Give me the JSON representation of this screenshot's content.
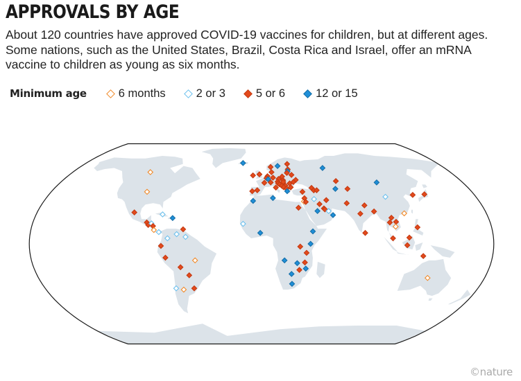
{
  "title": "APPROVALS BY AGE",
  "subtitle": "About 120 countries have approved COVID-19 vaccines for children, but at different ages. Some nations, such as the United States, Brazil, Costa Rica and Israel, offer an mRNA vaccine to children as young as six months.",
  "legend": {
    "title": "Minimum age",
    "items": [
      {
        "key": "m6",
        "label": "6 months",
        "fill": "#ffffff",
        "stroke": "#f08a2a"
      },
      {
        "key": "y2",
        "label": "2 or 3",
        "fill": "#ffffff",
        "stroke": "#6cc0ee"
      },
      {
        "key": "y5",
        "label": "5 or 6",
        "fill": "#e34a1c",
        "stroke": "#c43a12"
      },
      {
        "key": "y12",
        "label": "12 or 15",
        "fill": "#1f8fd8",
        "stroke": "#166fa8"
      }
    ]
  },
  "colors": {
    "land": "#dce3e9",
    "ocean": "#ffffff",
    "border": "#1a1a1a"
  },
  "credit": "©nature",
  "markers": [
    {
      "country": "United States",
      "lon": -98,
      "lat": 39,
      "age": "m6"
    },
    {
      "country": "Canada",
      "lon": -106,
      "lat": 56,
      "age": "m6"
    },
    {
      "country": "Mexico",
      "lon": -102,
      "lat": 23,
      "age": "y5"
    },
    {
      "country": "Cuba",
      "lon": -79,
      "lat": 21.5,
      "age": "y2"
    },
    {
      "country": "Dominican Republic",
      "lon": -70.5,
      "lat": 18.8,
      "age": "y12"
    },
    {
      "country": "Guatemala",
      "lon": -90.3,
      "lat": 15.5,
      "age": "y5"
    },
    {
      "country": "El Salvador",
      "lon": -88.9,
      "lat": 13.7,
      "age": "y5"
    },
    {
      "country": "Honduras",
      "lon": -86.5,
      "lat": 14.8,
      "age": "y2"
    },
    {
      "country": "Nicaragua",
      "lon": -85,
      "lat": 12.9,
      "age": "y5"
    },
    {
      "country": "Costa Rica",
      "lon": -84,
      "lat": 10,
      "age": "m6"
    },
    {
      "country": "Panama",
      "lon": -80,
      "lat": 8.5,
      "age": "y2"
    },
    {
      "country": "Venezuela",
      "lon": -66,
      "lat": 7,
      "age": "y2"
    },
    {
      "country": "Trinidad and Tobago",
      "lon": -61.2,
      "lat": 10.5,
      "age": "y5"
    },
    {
      "country": "Guyana",
      "lon": -59,
      "lat": 5,
      "age": "y2"
    },
    {
      "country": "Colombia",
      "lon": -73,
      "lat": 4,
      "age": "y2"
    },
    {
      "country": "Ecuador",
      "lon": -78,
      "lat": -1.5,
      "age": "y5"
    },
    {
      "country": "Peru",
      "lon": -75,
      "lat": -10,
      "age": "y5"
    },
    {
      "country": "Brazil",
      "lon": -52,
      "lat": -12,
      "age": "m6"
    },
    {
      "country": "Bolivia",
      "lon": -64,
      "lat": -17,
      "age": "y5"
    },
    {
      "country": "Paraguay",
      "lon": -58,
      "lat": -23,
      "age": "y5"
    },
    {
      "country": "Chile",
      "lon": -71,
      "lat": -33,
      "age": "y2"
    },
    {
      "country": "Argentina",
      "lon": -65,
      "lat": -34,
      "age": "m6"
    },
    {
      "country": "Uruguay",
      "lon": -56,
      "lat": -33,
      "age": "y5"
    },
    {
      "country": "Iceland",
      "lon": -19,
      "lat": 65,
      "age": "y12"
    },
    {
      "country": "Norway",
      "lon": 9,
      "lat": 61,
      "age": "y5"
    },
    {
      "country": "Sweden",
      "lon": 16,
      "lat": 62,
      "age": "y12"
    },
    {
      "country": "Finland",
      "lon": 26,
      "lat": 64,
      "age": "y5"
    },
    {
      "country": "Estonia",
      "lon": 25.5,
      "lat": 58.7,
      "age": "y5"
    },
    {
      "country": "Latvia",
      "lon": 25,
      "lat": 56.9,
      "age": "y12"
    },
    {
      "country": "Lithuania",
      "lon": 24,
      "lat": 55.3,
      "age": "y5"
    },
    {
      "country": "Denmark",
      "lon": 9.5,
      "lat": 56,
      "age": "y5"
    },
    {
      "country": "Ireland",
      "lon": -8,
      "lat": 53,
      "age": "y5"
    },
    {
      "country": "United Kingdom",
      "lon": -2,
      "lat": 54,
      "age": "y5"
    },
    {
      "country": "Netherlands",
      "lon": 5.5,
      "lat": 52.3,
      "age": "y5"
    },
    {
      "country": "Belgium",
      "lon": 4.5,
      "lat": 50.6,
      "age": "y5"
    },
    {
      "country": "Luxembourg",
      "lon": 6,
      "lat": 49.6,
      "age": "y12"
    },
    {
      "country": "Germany",
      "lon": 10.5,
      "lat": 51,
      "age": "y5"
    },
    {
      "country": "Poland",
      "lon": 19,
      "lat": 52,
      "age": "y5"
    },
    {
      "country": "Belarus",
      "lon": 28,
      "lat": 53.5,
      "age": "y5"
    },
    {
      "country": "Ukraine",
      "lon": 31,
      "lat": 49,
      "age": "y5"
    },
    {
      "country": "Czech Republic",
      "lon": 15.5,
      "lat": 49.8,
      "age": "y5"
    },
    {
      "country": "Slovakia",
      "lon": 19.5,
      "lat": 48.7,
      "age": "y5"
    },
    {
      "country": "Austria",
      "lon": 14.5,
      "lat": 47.5,
      "age": "y5"
    },
    {
      "country": "Switzerland",
      "lon": 8.2,
      "lat": 46.8,
      "age": "y5"
    },
    {
      "country": "France",
      "lon": 2.5,
      "lat": 46.5,
      "age": "y5"
    },
    {
      "country": "Hungary",
      "lon": 19.5,
      "lat": 47.2,
      "age": "y5"
    },
    {
      "country": "Slovenia",
      "lon": 14.8,
      "lat": 46.1,
      "age": "y5"
    },
    {
      "country": "Croatia",
      "lon": 16,
      "lat": 45.2,
      "age": "y5"
    },
    {
      "country": "Romania",
      "lon": 25,
      "lat": 46,
      "age": "y5"
    },
    {
      "country": "Moldova",
      "lon": 28.5,
      "lat": 47.2,
      "age": "y5"
    },
    {
      "country": "Serbia",
      "lon": 21,
      "lat": 44,
      "age": "y5"
    },
    {
      "country": "Bosnia and Herzegovina",
      "lon": 17.8,
      "lat": 44,
      "age": "y5"
    },
    {
      "country": "Montenegro",
      "lon": 19.3,
      "lat": 42.8,
      "age": "y5"
    },
    {
      "country": "Bulgaria",
      "lon": 25.5,
      "lat": 42.7,
      "age": "y5"
    },
    {
      "country": "North Macedonia",
      "lon": 21.7,
      "lat": 41.6,
      "age": "y5"
    },
    {
      "country": "Italy",
      "lon": 12.5,
      "lat": 42.5,
      "age": "y5"
    },
    {
      "country": "Spain",
      "lon": -3.7,
      "lat": 40.3,
      "age": "y5"
    },
    {
      "country": "Portugal",
      "lon": -8,
      "lat": 39.5,
      "age": "y5"
    },
    {
      "country": "Greece",
      "lon": 22,
      "lat": 39.5,
      "age": "y12"
    },
    {
      "country": "Turkey",
      "lon": 35,
      "lat": 39,
      "age": "y5"
    },
    {
      "country": "Russia",
      "lon": 60,
      "lat": 60,
      "age": "y12"
    },
    {
      "country": "Georgia",
      "lon": 43.5,
      "lat": 42.2,
      "age": "y5"
    },
    {
      "country": "Armenia",
      "lon": 45,
      "lat": 40.2,
      "age": "y5"
    },
    {
      "country": "Azerbaijan",
      "lon": 47.5,
      "lat": 40.3,
      "age": "y5"
    },
    {
      "country": "Kazakhstan",
      "lon": 67,
      "lat": 48,
      "age": "y5"
    },
    {
      "country": "Uzbekistan",
      "lon": 64,
      "lat": 41.4,
      "age": "y12"
    },
    {
      "country": "Kyrgyzstan",
      "lon": 74.5,
      "lat": 41.4,
      "age": "y5"
    },
    {
      "country": "Mongolia",
      "lon": 103,
      "lat": 46.8,
      "age": "y12"
    },
    {
      "country": "China",
      "lon": 104,
      "lat": 35,
      "age": "y2"
    },
    {
      "country": "South Korea",
      "lon": 127.8,
      "lat": 36.5,
      "age": "y5"
    },
    {
      "country": "Japan",
      "lon": 138,
      "lat": 37,
      "age": "y5"
    },
    {
      "country": "Morocco",
      "lon": -7,
      "lat": 31.8,
      "age": "y12"
    },
    {
      "country": "Tunisia",
      "lon": 9.5,
      "lat": 34,
      "age": "y12"
    },
    {
      "country": "Egypt",
      "lon": 30,
      "lat": 26.5,
      "age": "y5"
    },
    {
      "country": "Israel",
      "lon": 35,
      "lat": 31.3,
      "age": "m6"
    },
    {
      "country": "Lebanon",
      "lon": 35.8,
      "lat": 33.9,
      "age": "y5"
    },
    {
      "country": "Jordan",
      "lon": 36.5,
      "lat": 31,
      "age": "y5"
    },
    {
      "country": "Iraq",
      "lon": 43.7,
      "lat": 33.2,
      "age": "y2"
    },
    {
      "country": "Iran",
      "lon": 53.7,
      "lat": 32.4,
      "age": "y5"
    },
    {
      "country": "Kuwait",
      "lon": 47.5,
      "lat": 29.3,
      "age": "y5"
    },
    {
      "country": "Saudi Arabia",
      "lon": 45,
      "lat": 24,
      "age": "y12"
    },
    {
      "country": "Bahrain",
      "lon": 50.5,
      "lat": 26,
      "age": "y5"
    },
    {
      "country": "Qatar",
      "lon": 51.2,
      "lat": 25.3,
      "age": "y5"
    },
    {
      "country": "United Arab Emirates",
      "lon": 54,
      "lat": 24,
      "age": "y2"
    },
    {
      "country": "Oman",
      "lon": 57,
      "lat": 21,
      "age": "y12"
    },
    {
      "country": "Pakistan",
      "lon": 70,
      "lat": 30,
      "age": "y5"
    },
    {
      "country": "Nepal",
      "lon": 84,
      "lat": 28.3,
      "age": "y5"
    },
    {
      "country": "India",
      "lon": 79,
      "lat": 22,
      "age": "y5"
    },
    {
      "country": "Bangladesh",
      "lon": 90.4,
      "lat": 23.7,
      "age": "y5"
    },
    {
      "country": "Sri Lanka",
      "lon": 80.7,
      "lat": 7.9,
      "age": "y5"
    },
    {
      "country": "Thailand",
      "lon": 101,
      "lat": 15.5,
      "age": "y5"
    },
    {
      "country": "Laos",
      "lon": 103,
      "lat": 19,
      "age": "y5"
    },
    {
      "country": "Vietnam",
      "lon": 106,
      "lat": 16,
      "age": "y5"
    },
    {
      "country": "Cambodia",
      "lon": 105,
      "lat": 12.5,
      "age": "m6"
    },
    {
      "country": "Hong Kong",
      "lon": 114.2,
      "lat": 22.3,
      "age": "m6"
    },
    {
      "country": "Philippines",
      "lon": 122,
      "lat": 12,
      "age": "y5"
    },
    {
      "country": "Malaysia",
      "lon": 102,
      "lat": 4,
      "age": "y5"
    },
    {
      "country": "Brunei",
      "lon": 114.7,
      "lat": 4.5,
      "age": "y5"
    },
    {
      "country": "Indonesia",
      "lon": 113,
      "lat": -1,
      "age": "y5"
    },
    {
      "country": "Timor-Leste",
      "lon": 126,
      "lat": -8.8,
      "age": "y5"
    },
    {
      "country": "Australia",
      "lon": 134,
      "lat": -25,
      "age": "m6"
    },
    {
      "country": "Senegal",
      "lon": -14.5,
      "lat": 14.5,
      "age": "y2"
    },
    {
      "country": "Ghana",
      "lon": -1,
      "lat": 7.9,
      "age": "y12"
    },
    {
      "country": "Ethiopia",
      "lon": 40,
      "lat": 9,
      "age": "y12"
    },
    {
      "country": "Kenya",
      "lon": 38,
      "lat": 0,
      "age": "y12"
    },
    {
      "country": "Rwanda",
      "lon": 30,
      "lat": -2,
      "age": "y5"
    },
    {
      "country": "Tanzania",
      "lon": 35,
      "lat": -6.5,
      "age": "y5"
    },
    {
      "country": "Angola",
      "lon": 18,
      "lat": -12,
      "age": "y12"
    },
    {
      "country": "Zambia",
      "lon": 28,
      "lat": -14,
      "age": "y12"
    },
    {
      "country": "Malawi",
      "lon": 34,
      "lat": -13.5,
      "age": "y5"
    },
    {
      "country": "Mozambique",
      "lon": 35,
      "lat": -18,
      "age": "y12"
    },
    {
      "country": "Zimbabwe",
      "lon": 30,
      "lat": -19,
      "age": "y5"
    },
    {
      "country": "Botswana",
      "lon": 24,
      "lat": -22,
      "age": "y12"
    },
    {
      "country": "South Africa",
      "lon": 25,
      "lat": -29.5,
      "age": "y12"
    }
  ]
}
